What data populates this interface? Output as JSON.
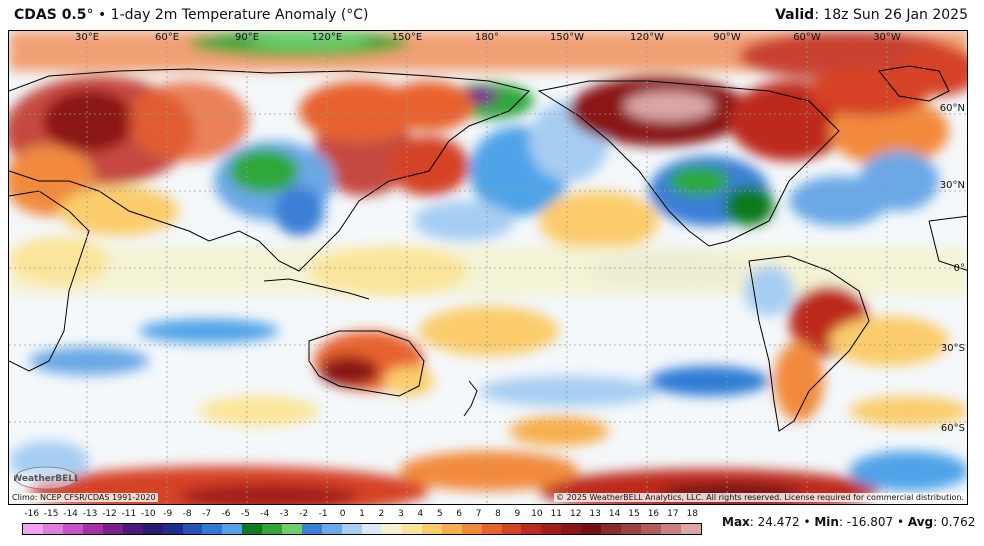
{
  "header": {
    "product": "CDAS 0.5",
    "degree": "°",
    "bullet": " • ",
    "field": "1-day 2m Temperature Anomaly (°C)",
    "valid_label": "Valid",
    "valid_value": ": 18z Sun 26 Jan 2025"
  },
  "map": {
    "longitude_labels": [
      "30°E",
      "60°E",
      "90°E",
      "120°E",
      "150°E",
      "180°",
      "150°W",
      "120°W",
      "90°W",
      "60°W",
      "30°W"
    ],
    "latitude_labels": [
      "60°N",
      "30°N",
      "0°",
      "30°S",
      "60°S"
    ],
    "colors": {
      "ocean_base": "#f4f8fb",
      "coast": "#000000",
      "grid": "#999999"
    }
  },
  "footer": {
    "climo_note": "Climo: NCEP CFSR/CDAS 1991-2020",
    "copyright": "© 2025 WeatherBELL Analytics, LLC. All rights reserved. License required for commercial distribution.",
    "logo_text": "WeatherBELL"
  },
  "colorbar": {
    "ticks": [
      "-16",
      "-15",
      "-14",
      "-13",
      "-12",
      "-11",
      "-10",
      "-9",
      "-8",
      "-7",
      "-6",
      "-5",
      "-4",
      "-3",
      "-2",
      "-1",
      "0",
      "1",
      "2",
      "3",
      "4",
      "5",
      "6",
      "7",
      "8",
      "9",
      "10",
      "11",
      "12",
      "13",
      "14",
      "15",
      "16",
      "17",
      "18"
    ],
    "colors": [
      "#f3a4f0",
      "#e07ee0",
      "#c853c8",
      "#a531a5",
      "#7a1f8c",
      "#4d1a7a",
      "#2b1a70",
      "#1c2f8f",
      "#2452b5",
      "#2f7bd4",
      "#4fa3e8",
      "#117a1e",
      "#2fa83a",
      "#6fd06a",
      "#3a7fd6",
      "#6aa8e6",
      "#a6cdf2",
      "#d9ebfa",
      "#f4f2d0",
      "#fbe59a",
      "#fbcc6c",
      "#f8ae4e",
      "#f28a3c",
      "#e8622e",
      "#d64226",
      "#bd2a1f",
      "#a31d1a",
      "#8a1616",
      "#741212",
      "#8a2a2a",
      "#9e4040",
      "#b45c5c",
      "#c98080",
      "#dca6a6"
    ]
  },
  "stats": {
    "max_label": "Max",
    "max_value": ": 24.472 • ",
    "min_label": "Min",
    "min_value": ": -16.807 • ",
    "avg_label": "Avg",
    "avg_value": ": 0.762"
  }
}
